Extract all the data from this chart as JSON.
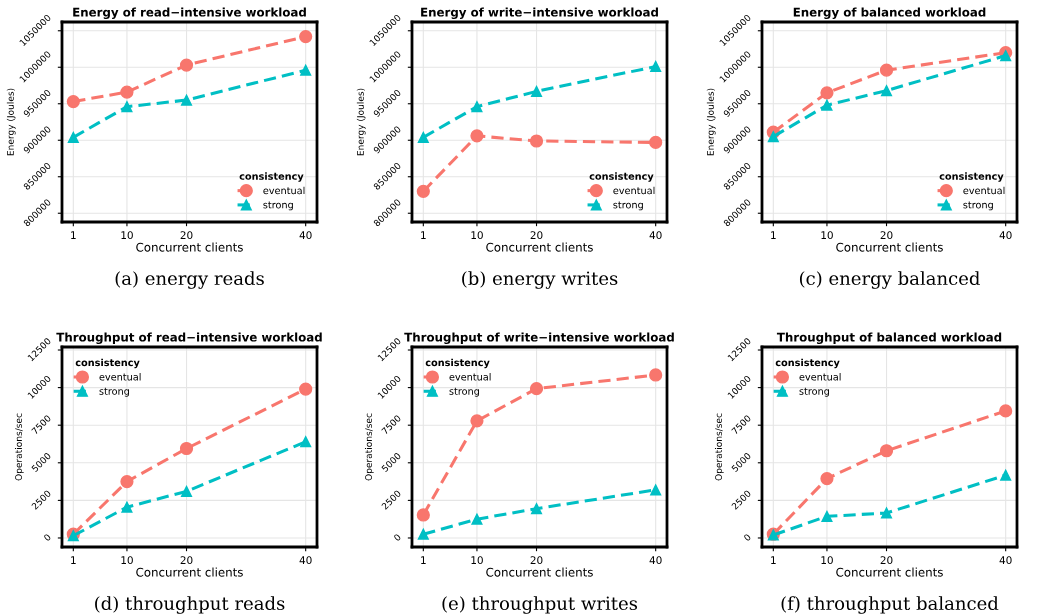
{
  "chart_data": [
    {
      "type": "line",
      "title": "Energy of read−intensive workload",
      "xlabel": "Concurrent clients",
      "ylabel": "Energy (Joules)",
      "legend_title": "consistency",
      "legend": "bottom right",
      "grid": true,
      "line_style": "dashed",
      "x": [
        1,
        10,
        20,
        40
      ],
      "xlim": [
        -0.9,
        41.9
      ],
      "xticks": [
        1,
        10,
        20,
        40
      ],
      "ylim": [
        788000,
        1062000
      ],
      "yticks": [
        800000,
        850000,
        900000,
        950000,
        1000000,
        1050000
      ],
      "annotations": [
        "(a) energy reads"
      ],
      "series": [
        {
          "name": "eventual",
          "color": "#f8766d",
          "marker": "circle",
          "values": [
            953000,
            966000,
            1003000,
            1042000
          ]
        },
        {
          "name": "strong",
          "color": "#00bfc4",
          "marker": "triangle",
          "values": [
            904000,
            946000,
            955000,
            996000
          ]
        }
      ]
    },
    {
      "type": "line",
      "title": "Energy of write−intensive workload",
      "xlabel": "Concurrent clients",
      "ylabel": "Energy (Joules)",
      "legend_title": "consistency",
      "legend": "bottom right",
      "grid": true,
      "line_style": "dashed",
      "x": [
        1,
        10,
        20,
        40
      ],
      "xlim": [
        -0.9,
        41.9
      ],
      "xticks": [
        1,
        10,
        20,
        40
      ],
      "ylim": [
        788000,
        1062000
      ],
      "yticks": [
        800000,
        850000,
        900000,
        950000,
        1000000,
        1050000
      ],
      "annotations": [
        "(b) energy writes"
      ],
      "series": [
        {
          "name": "eventual",
          "color": "#f8766d",
          "marker": "circle",
          "values": [
            830000,
            906000,
            899000,
            897000
          ]
        },
        {
          "name": "strong",
          "color": "#00bfc4",
          "marker": "triangle",
          "values": [
            904000,
            946000,
            967000,
            1001000
          ]
        }
      ]
    },
    {
      "type": "line",
      "title": "Energy of balanced workload",
      "xlabel": "Concurrent clients",
      "ylabel": "Energy (Joules)",
      "legend_title": "consistency",
      "legend": "bottom right",
      "grid": true,
      "line_style": "dashed",
      "x": [
        1,
        10,
        20,
        40
      ],
      "xlim": [
        -0.9,
        41.9
      ],
      "xticks": [
        1,
        10,
        20,
        40
      ],
      "ylim": [
        788000,
        1062000
      ],
      "yticks": [
        800000,
        850000,
        900000,
        950000,
        1000000,
        1050000
      ],
      "annotations": [
        "(c) energy balanced"
      ],
      "series": [
        {
          "name": "eventual",
          "color": "#f8766d",
          "marker": "circle",
          "values": [
            911000,
            965000,
            996000,
            1020000
          ]
        },
        {
          "name": "strong",
          "color": "#00bfc4",
          "marker": "triangle",
          "values": [
            905000,
            948000,
            968000,
            1016000
          ]
        }
      ]
    },
    {
      "type": "line",
      "title": "Throughput of read−intensive workload",
      "xlabel": "Concurrent clients",
      "ylabel": "Operations/sec",
      "legend_title": "consistency",
      "legend": "top left",
      "grid": true,
      "line_style": "dashed",
      "x": [
        1,
        10,
        20,
        40
      ],
      "xlim": [
        -0.9,
        41.9
      ],
      "xticks": [
        1,
        10,
        20,
        40
      ],
      "ylim": [
        -600,
        12700
      ],
      "yticks": [
        0,
        2500,
        5000,
        7500,
        10000,
        12500
      ],
      "annotations": [
        "(d) throughput reads"
      ],
      "series": [
        {
          "name": "eventual",
          "color": "#f8766d",
          "marker": "circle",
          "values": [
            250,
            3750,
            5950,
            9900
          ]
        },
        {
          "name": "strong",
          "color": "#00bfc4",
          "marker": "triangle",
          "values": [
            150,
            2050,
            3100,
            6400
          ]
        }
      ]
    },
    {
      "type": "line",
      "title": "Throughput of write−intensive workload",
      "xlabel": "Concurrent clients",
      "ylabel": "Operations/sec",
      "legend_title": "consistency",
      "legend": "top left",
      "grid": true,
      "line_style": "dashed",
      "x": [
        1,
        10,
        20,
        40
      ],
      "xlim": [
        -0.9,
        41.9
      ],
      "xticks": [
        1,
        10,
        20,
        40
      ],
      "ylim": [
        -600,
        12700
      ],
      "yticks": [
        0,
        2500,
        5000,
        7500,
        10000,
        12500
      ],
      "annotations": [
        "(e) throughput writes"
      ],
      "series": [
        {
          "name": "eventual",
          "color": "#f8766d",
          "marker": "circle",
          "values": [
            1530,
            7790,
            9930,
            10840
          ]
        },
        {
          "name": "strong",
          "color": "#00bfc4",
          "marker": "triangle",
          "values": [
            250,
            1250,
            1950,
            3200
          ]
        }
      ]
    },
    {
      "type": "line",
      "title": "Throughput of balanced workload",
      "xlabel": "Concurrent clients",
      "ylabel": "Operations/sec",
      "legend_title": "consistency",
      "legend": "top left",
      "grid": true,
      "line_style": "dashed",
      "x": [
        1,
        10,
        20,
        40
      ],
      "xlim": [
        -0.9,
        41.9
      ],
      "xticks": [
        1,
        10,
        20,
        40
      ],
      "ylim": [
        -600,
        12700
      ],
      "yticks": [
        0,
        2500,
        5000,
        7500,
        10000,
        12500
      ],
      "annotations": [
        "(f) throughput balanced"
      ],
      "series": [
        {
          "name": "eventual",
          "color": "#f8766d",
          "marker": "circle",
          "values": [
            250,
            3950,
            5800,
            8450
          ]
        },
        {
          "name": "strong",
          "color": "#00bfc4",
          "marker": "triangle",
          "values": [
            200,
            1440,
            1660,
            4180
          ]
        }
      ]
    }
  ]
}
